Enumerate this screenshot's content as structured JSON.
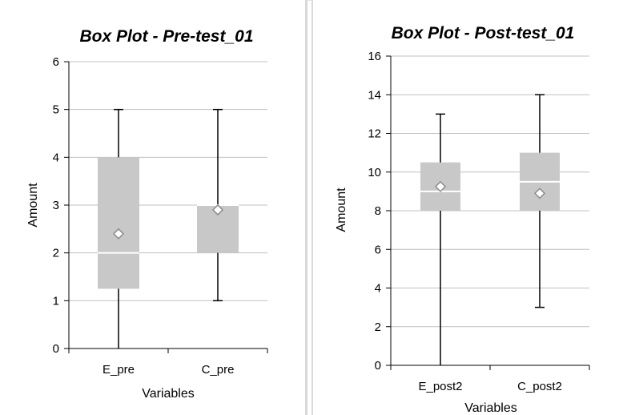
{
  "chart_data": [
    {
      "type": "box",
      "title": "Box Plot - Pre-test_01",
      "xlabel": "Variables",
      "ylabel": "Amount",
      "ylim": [
        0,
        6
      ],
      "yticks": [
        "0",
        "1",
        "2",
        "3",
        "4",
        "5",
        "6"
      ],
      "grid": true,
      "legend": "none",
      "box_color": "#c8c8c8",
      "categories": [
        "E_pre",
        "C_pre"
      ],
      "boxes": [
        {
          "min": 0,
          "q1": 1.25,
          "median": 2.0,
          "q3": 4.0,
          "max": 5,
          "mean": 2.4
        },
        {
          "min": 1,
          "q1": 2.0,
          "median": 3.0,
          "q3": 3.0,
          "max": 5,
          "mean": 2.9
        }
      ]
    },
    {
      "type": "box",
      "title": "Box Plot - Post-test_01",
      "xlabel": "Variables",
      "ylabel": "Amount",
      "ylim": [
        0,
        16
      ],
      "yticks": [
        "0",
        "2",
        "4",
        "6",
        "8",
        "10",
        "12",
        "14",
        "16"
      ],
      "grid": true,
      "legend": "none",
      "box_color": "#c8c8c8",
      "categories": [
        "E_post2",
        "C_post2"
      ],
      "boxes": [
        {
          "min": 0,
          "q1": 8.0,
          "median": 9.0,
          "q3": 10.5,
          "max": 13,
          "mean": 9.25
        },
        {
          "min": 3,
          "q1": 8.0,
          "median": 9.5,
          "q3": 11.0,
          "max": 14,
          "mean": 8.9
        }
      ]
    }
  ]
}
